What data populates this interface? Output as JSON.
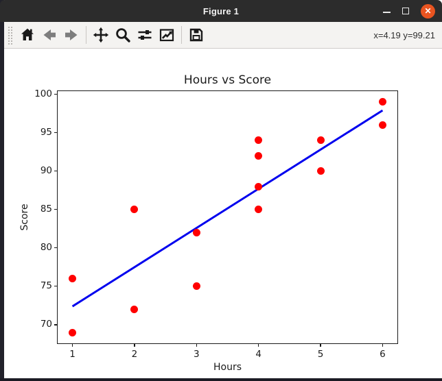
{
  "window": {
    "title": "Figure 1",
    "controls": {
      "minimize_icon": "minimize-icon",
      "maximize_icon": "maximize-icon",
      "close_icon": "close-icon",
      "close_glyph": "✕",
      "close_color": "#E95420"
    }
  },
  "toolbar": {
    "icons": [
      "home-icon",
      "back-arrow-icon",
      "forward-arrow-icon",
      "pan-move-icon",
      "zoom-magnifier-icon",
      "configure-subplots-icon",
      "customize-plot-icon",
      "save-icon"
    ],
    "readout": "x=4.19 y=99.21"
  },
  "chart_data": {
    "type": "scatter",
    "title": "Hours vs Score",
    "xlabel": "Hours",
    "ylabel": "Score",
    "x_ticks": [
      1,
      2,
      3,
      4,
      5,
      6
    ],
    "y_ticks": [
      70,
      75,
      80,
      85,
      90,
      95,
      100
    ],
    "xlim": [
      0.75,
      6.25
    ],
    "ylim": [
      67.5,
      100.5
    ],
    "grid": false,
    "legend": null,
    "series": [
      {
        "name": "data-points",
        "kind": "scatter",
        "color": "#ff0000",
        "points": [
          [
            1,
            69
          ],
          [
            1,
            76
          ],
          [
            2,
            72
          ],
          [
            2,
            85
          ],
          [
            3,
            75
          ],
          [
            3,
            82
          ],
          [
            4,
            85
          ],
          [
            4,
            88
          ],
          [
            4,
            92
          ],
          [
            4,
            94
          ],
          [
            5,
            90
          ],
          [
            5,
            94
          ],
          [
            6,
            96
          ],
          [
            6,
            99
          ]
        ]
      },
      {
        "name": "regression-line",
        "kind": "line",
        "color": "#0000ee",
        "width": 3,
        "points": [
          [
            1,
            72.4
          ],
          [
            6,
            97.9
          ]
        ]
      }
    ]
  }
}
